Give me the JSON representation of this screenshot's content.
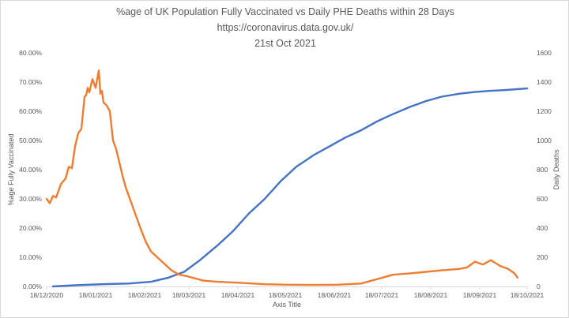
{
  "chart_data": {
    "type": "line",
    "title_lines": [
      "%age of UK Population Fully Vaccinated vs Daily PHE Deaths within 28 Days",
      "https://coronavirus.data.gov.uk/",
      "21st Oct 2021"
    ],
    "xlabel": "Axis Title",
    "ylabel_left": "%age Fully Vaccinated",
    "ylabel_right": "Daily Deaths",
    "x_ticks": [
      "18/12/2020",
      "18/01/2021",
      "18/02/2021",
      "18/03/2021",
      "18/04/2021",
      "18/05/2021",
      "18/06/2021",
      "18/07/2021",
      "18/08/2021",
      "18/09/2021",
      "18/10/2021"
    ],
    "y_left_ticks": [
      "0.00%",
      "10.00%",
      "20.00%",
      "30.00%",
      "40.00%",
      "50.00%",
      "60.00%",
      "70.00%",
      "80.00%"
    ],
    "y_right_ticks": [
      "0",
      "200",
      "400",
      "600",
      "800",
      "1000",
      "1200",
      "1400",
      "1600"
    ],
    "ylim_left": [
      0,
      80
    ],
    "ylim_right": [
      0,
      1600
    ],
    "xlim_days": [
      0,
      304
    ],
    "grid": false,
    "legend": "none",
    "series": [
      {
        "axis": "left",
        "color": "#4472c4",
        "x": [
          "2020-12-22",
          "2021-01-05",
          "2021-01-25",
          "2021-02-08",
          "2021-02-22",
          "2021-03-05",
          "2021-03-15",
          "2021-03-25",
          "2021-04-05",
          "2021-04-15",
          "2021-04-25",
          "2021-05-05",
          "2021-05-15",
          "2021-05-25",
          "2021-06-05",
          "2021-06-15",
          "2021-06-25",
          "2021-07-05",
          "2021-07-15",
          "2021-07-25",
          "2021-08-05",
          "2021-08-15",
          "2021-08-25",
          "2021-09-05",
          "2021-09-15",
          "2021-09-25",
          "2021-10-05",
          "2021-10-18"
        ],
        "y": [
          0.0,
          0.4,
          0.8,
          1.0,
          1.6,
          3.0,
          5.0,
          9.0,
          14.0,
          19.0,
          25.0,
          30.0,
          36.0,
          41.0,
          45.0,
          48.0,
          51.0,
          53.5,
          56.5,
          59.0,
          61.5,
          63.5,
          65.0,
          66.0,
          66.6,
          67.0,
          67.3,
          67.8
        ]
      },
      {
        "axis": "right",
        "color": "#ed7d31",
        "x": [
          "2020-12-18",
          "2020-12-20",
          "2020-12-22",
          "2020-12-24",
          "2020-12-27",
          "2020-12-30",
          "2021-01-01",
          "2021-01-03",
          "2021-01-05",
          "2021-01-07",
          "2021-01-09",
          "2021-01-11",
          "2021-01-12",
          "2021-01-13",
          "2021-01-14",
          "2021-01-16",
          "2021-01-18",
          "2021-01-20",
          "2021-01-21",
          "2021-01-22",
          "2021-01-23",
          "2021-01-25",
          "2021-01-27",
          "2021-01-29",
          "2021-01-31",
          "2021-02-02",
          "2021-02-04",
          "2021-02-06",
          "2021-02-08",
          "2021-02-10",
          "2021-02-13",
          "2021-02-16",
          "2021-02-19",
          "2021-02-22",
          "2021-02-26",
          "2021-03-02",
          "2021-03-07",
          "2021-03-12",
          "2021-03-17",
          "2021-03-22",
          "2021-03-27",
          "2021-04-05",
          "2021-04-20",
          "2021-05-05",
          "2021-05-20",
          "2021-06-05",
          "2021-06-20",
          "2021-07-05",
          "2021-07-15",
          "2021-07-25",
          "2021-08-05",
          "2021-08-15",
          "2021-08-25",
          "2021-09-05",
          "2021-09-10",
          "2021-09-15",
          "2021-09-20",
          "2021-09-25",
          "2021-10-01",
          "2021-10-06",
          "2021-10-10",
          "2021-10-12"
        ],
        "y": [
          600,
          570,
          620,
          610,
          700,
          740,
          820,
          810,
          960,
          1050,
          1080,
          1300,
          1310,
          1360,
          1330,
          1420,
          1360,
          1480,
          1320,
          1340,
          1260,
          1240,
          1200,
          1000,
          940,
          850,
          760,
          680,
          620,
          560,
          470,
          380,
          300,
          240,
          200,
          160,
          110,
          80,
          70,
          55,
          40,
          32,
          25,
          15,
          12,
          10,
          12,
          20,
          50,
          80,
          90,
          100,
          110,
          120,
          130,
          170,
          150,
          180,
          140,
          120,
          90,
          60
        ]
      }
    ]
  }
}
